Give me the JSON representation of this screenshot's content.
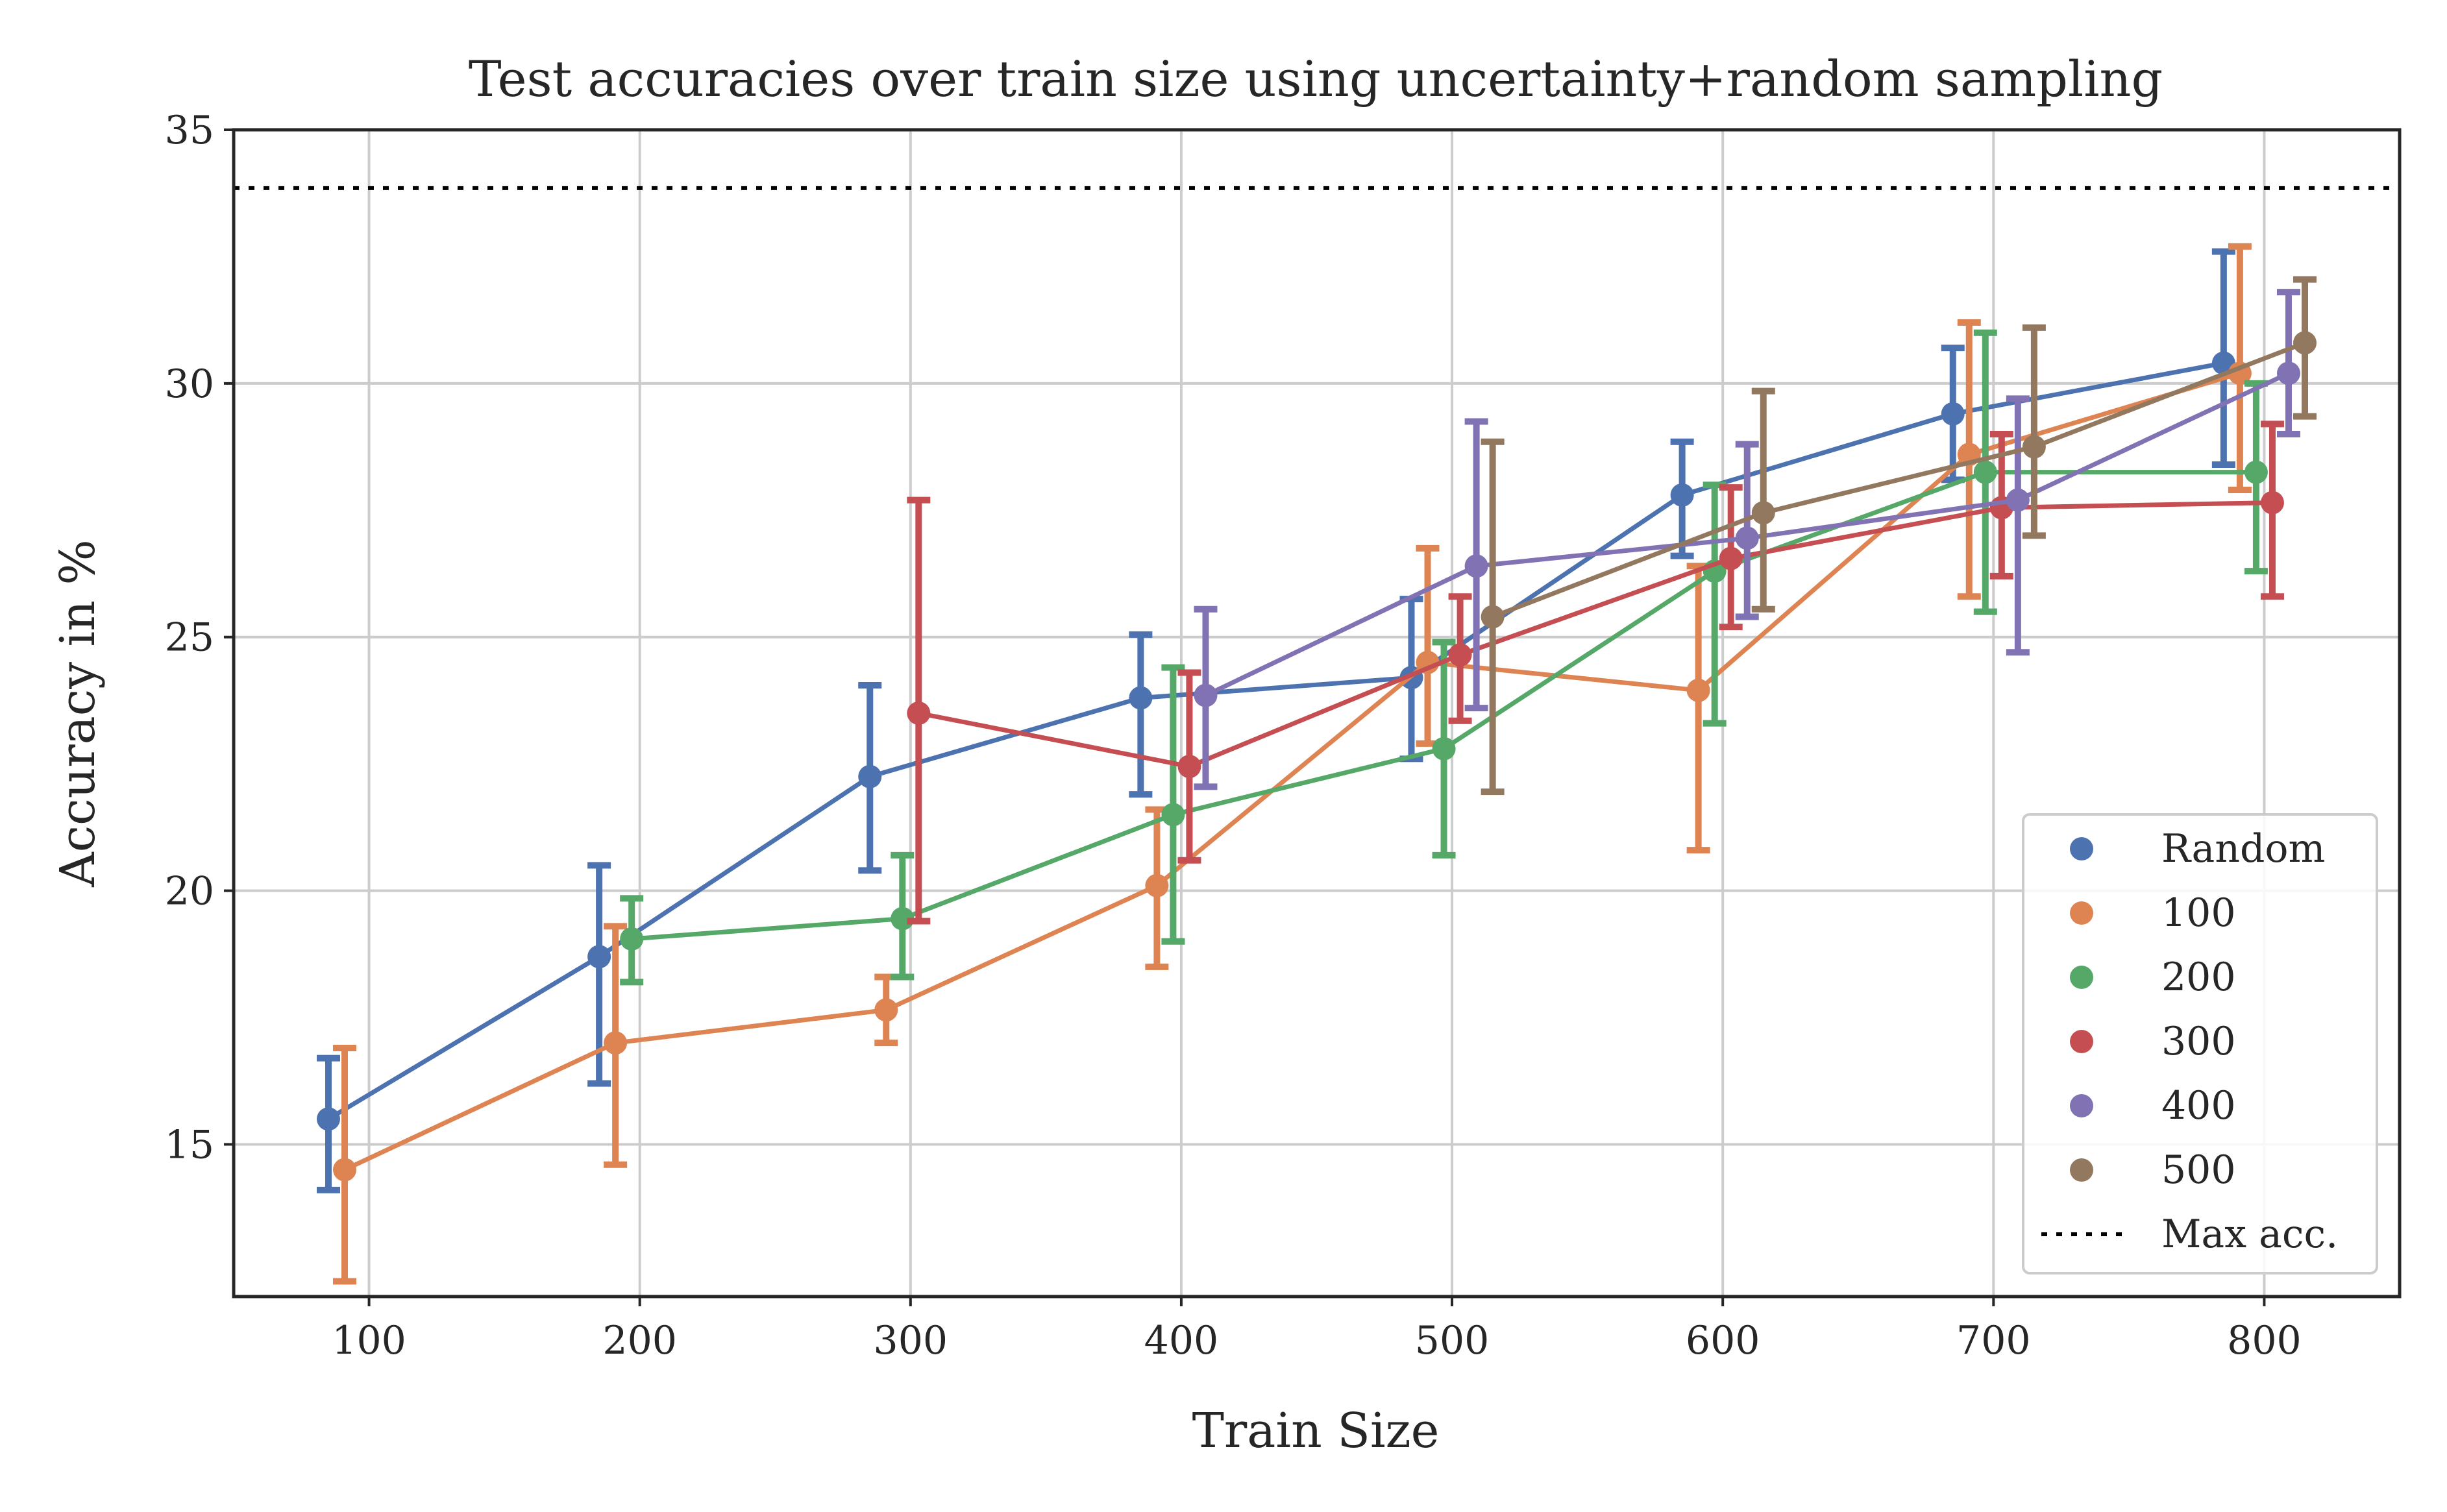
{
  "chart_data": {
    "type": "line",
    "title": "Test accuracies over train size using uncertainty+random sampling",
    "xlabel": "Train Size",
    "ylabel": "Accuracy in %",
    "xlim": [
      50,
      850
    ],
    "ylim": [
      12,
      35
    ],
    "xticks": [
      100,
      200,
      300,
      400,
      500,
      600,
      700,
      800
    ],
    "yticks": [
      15,
      20,
      25,
      30,
      35
    ],
    "grid": true,
    "legend_position": "lower-right",
    "error_bars": true,
    "max_acc": {
      "name": "Max acc.",
      "value": 33.85,
      "style": "dotted",
      "color": "#000000"
    },
    "series": [
      {
        "name": "Random",
        "color": "#4c72b0",
        "x": [
          100,
          200,
          300,
          400,
          500,
          600,
          700,
          800
        ],
        "y": [
          15.5,
          18.7,
          22.25,
          23.8,
          24.2,
          27.8,
          29.4,
          30.4
        ],
        "err_low": [
          14.1,
          16.2,
          20.4,
          21.9,
          22.6,
          26.6,
          28.1,
          28.4
        ],
        "err_high": [
          16.7,
          20.5,
          24.05,
          25.05,
          25.75,
          28.85,
          30.7,
          32.6
        ]
      },
      {
        "name": "100",
        "color": "#dd8452",
        "x": [
          100,
          200,
          300,
          400,
          500,
          600,
          700,
          800
        ],
        "y": [
          14.5,
          17.0,
          17.65,
          20.1,
          24.5,
          23.95,
          28.6,
          30.2
        ],
        "err_low": [
          12.3,
          14.6,
          17.0,
          18.5,
          22.9,
          20.8,
          25.8,
          27.9
        ],
        "err_high": [
          16.9,
          19.3,
          18.3,
          21.6,
          26.75,
          26.4,
          31.2,
          32.7
        ]
      },
      {
        "name": "200",
        "color": "#55a868",
        "x": [
          100,
          200,
          300,
          400,
          500,
          600,
          700,
          800
        ],
        "y": [
          null,
          19.05,
          19.45,
          21.5,
          22.8,
          26.3,
          28.25,
          28.25
        ],
        "err_low": [
          null,
          18.2,
          18.3,
          19.0,
          20.7,
          23.3,
          25.5,
          26.3
        ],
        "err_high": [
          null,
          19.85,
          20.7,
          24.4,
          24.9,
          28.0,
          31.0,
          30.0
        ]
      },
      {
        "name": "300",
        "color": "#c44e52",
        "x": [
          100,
          200,
          300,
          400,
          500,
          600,
          700,
          800
        ],
        "y": [
          null,
          null,
          23.5,
          22.45,
          24.65,
          26.55,
          27.55,
          27.65
        ],
        "err_low": [
          null,
          null,
          19.4,
          20.6,
          23.35,
          25.2,
          26.2,
          25.8
        ],
        "err_high": [
          null,
          null,
          27.7,
          24.3,
          25.8,
          27.95,
          29.0,
          29.2
        ]
      },
      {
        "name": "400",
        "color": "#8172b3",
        "x": [
          100,
          200,
          300,
          400,
          500,
          600,
          700,
          800
        ],
        "y": [
          null,
          null,
          null,
          23.85,
          26.4,
          26.95,
          27.7,
          30.2
        ],
        "err_low": [
          null,
          null,
          null,
          22.05,
          23.6,
          25.4,
          24.7,
          29.0
        ],
        "err_high": [
          null,
          null,
          null,
          25.55,
          29.25,
          28.8,
          29.7,
          31.8
        ]
      },
      {
        "name": "500",
        "color": "#937860",
        "x": [
          100,
          200,
          300,
          400,
          500,
          600,
          700,
          800
        ],
        "y": [
          null,
          null,
          null,
          null,
          25.4,
          27.45,
          28.75,
          30.8
        ],
        "err_low": [
          null,
          null,
          null,
          null,
          21.95,
          25.55,
          27.0,
          29.35
        ],
        "err_high": [
          null,
          null,
          null,
          null,
          28.85,
          29.85,
          31.1,
          32.05
        ]
      }
    ]
  }
}
